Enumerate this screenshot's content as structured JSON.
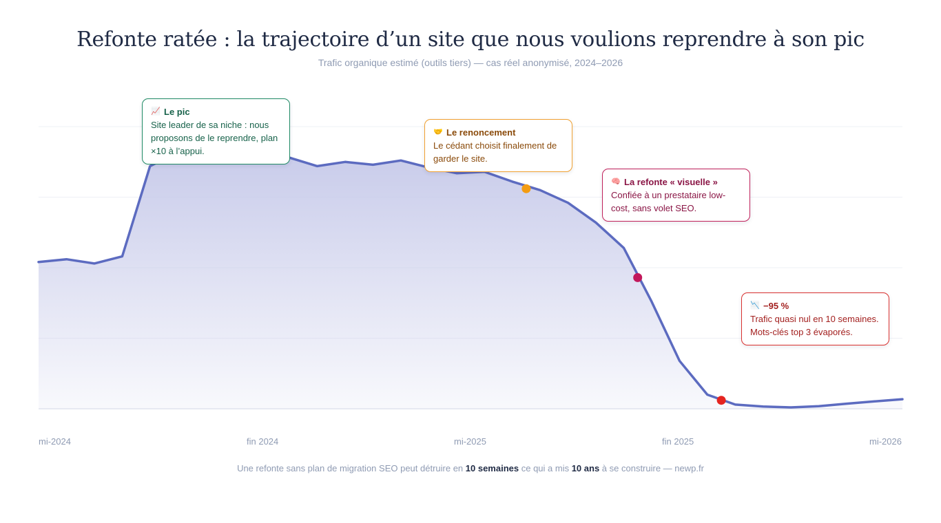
{
  "title": "Refonte ratée : la trajectoire d’un site que nous voulions reprendre à son pic",
  "subtitle": "Trafic organique estimé (outils tiers) — cas réel anonymisé, 2024–2026",
  "colors": {
    "line": "#5c6bc0",
    "area_top": "#c8cbea",
    "grid": "#eef0f5",
    "dot_orange": "#f39c12",
    "dot_crimson": "#c2185b",
    "dot_red": "#e52420"
  },
  "chart_data": {
    "type": "area",
    "x_ticks": [
      "mi-2024",
      "fin 2024",
      "mi-2025",
      "fin 2025",
      "mi-2026"
    ],
    "x_range": [
      0,
      31
    ],
    "y_range": [
      0,
      100
    ],
    "ylabel": "",
    "grid": true,
    "series": [
      {
        "values": [
          52,
          53,
          51.5,
          54,
          86,
          91,
          90.5,
          91.5,
          87.5,
          89,
          86,
          87.5,
          86.5,
          88,
          85.5,
          83.5,
          84,
          80.5,
          77.5,
          73,
          66,
          57,
          38,
          17,
          5,
          1.5,
          0.8,
          0.5,
          0.9,
          1.8,
          2.6,
          3.4
        ]
      }
    ],
    "highlight_points": [
      {
        "index": 17.5,
        "value": 78,
        "color": "#f39c12"
      },
      {
        "index": 21.5,
        "value": 46.5,
        "color": "#c2185b"
      },
      {
        "index": 24.5,
        "value": 3,
        "color": "#e52420"
      }
    ]
  },
  "callouts": [
    {
      "icon": "chart-up-icon",
      "title": "Le pic",
      "text": "Site leader de sa niche : nous proposons de le reprendre, plan ×10 à l’appui."
    },
    {
      "icon": "handshake-icon",
      "title": "Le renoncement",
      "text": "Le cédant choisit finalement de garder le site."
    },
    {
      "icon": "brain-icon",
      "title": "La refonte « visuelle »",
      "text": "Confiée à un prestataire low-cost, sans volet SEO."
    },
    {
      "icon": "chart-down-icon",
      "title": "−95 %",
      "text": "Trafic quasi nul en 10 semaines. Mots-clés top 3 évaporés."
    }
  ],
  "footer": {
    "before": "Une refonte sans plan de migration SEO peut détruire en ",
    "bold1": "10 semaines",
    "middle": " ce qui a mis ",
    "bold2": "10 ans",
    "after": " à se construire — newp.fr"
  }
}
